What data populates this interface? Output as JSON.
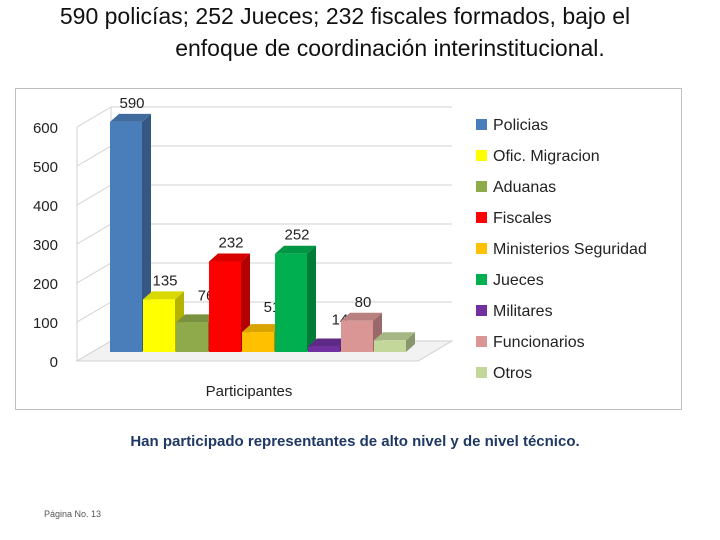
{
  "slide": {
    "title_line1": "590 policías; 252 Jueces; 232 fiscales formados, bajo el",
    "title_line2": "enfoque de coordinación interinstitucional.",
    "caption": "Han participado representantes de alto nivel y de nivel técnico.",
    "page_number": "Página No. 13"
  },
  "chart_data": {
    "type": "bar",
    "xlabel": "Participantes",
    "ylabel": "",
    "ylim": [
      0,
      600
    ],
    "yticks": [
      0,
      100,
      200,
      300,
      400,
      500,
      600
    ],
    "legend_position": "right",
    "grid": true,
    "three_d": true,
    "series": [
      {
        "name": "Policias",
        "value": 590,
        "label": "590",
        "color": "#4a7ebb"
      },
      {
        "name": "Ofic. Migracion",
        "value": 135,
        "label": "135",
        "color": "#ffff00"
      },
      {
        "name": "Aduanas",
        "value": 76,
        "label": "76",
        "color": "#8faa4b"
      },
      {
        "name": "Fiscales",
        "value": 232,
        "label": "232",
        "color": "#ff0000"
      },
      {
        "name": "Ministerios Seguridad",
        "value": 51,
        "label": "51",
        "color": "#ffc000"
      },
      {
        "name": "Jueces",
        "value": 252,
        "label": "252",
        "color": "#00b050"
      },
      {
        "name": "Militares",
        "value": 14,
        "label": "14",
        "color": "#7030a0"
      },
      {
        "name": "Funcionarios",
        "value": 80,
        "label": "80",
        "color": "#d99694"
      },
      {
        "name": "Otros",
        "value": 30,
        "label": "",
        "color": "#c4d79b"
      }
    ]
  }
}
